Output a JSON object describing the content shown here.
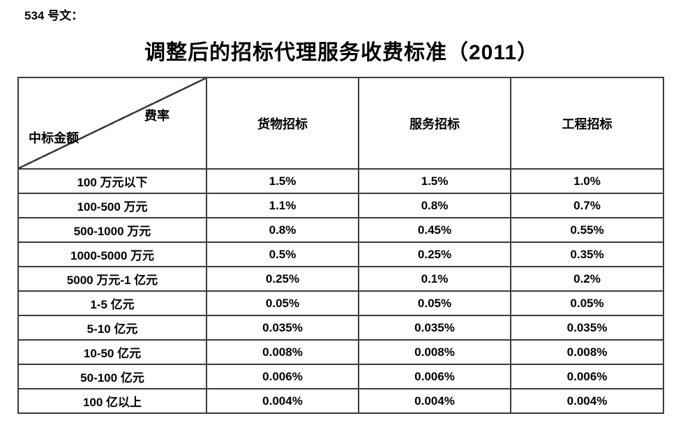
{
  "page": {
    "doc_ref": "534 号文：",
    "title": "调整后的招标代理服务收费标准（2011）"
  },
  "table": {
    "corner": {
      "top_right_label": "费率",
      "bottom_left_label": "中标金额"
    },
    "columns": [
      "货物招标",
      "服务招标",
      "工程招标"
    ],
    "rows": [
      {
        "label": "100 万元以下",
        "values": [
          "1.5%",
          "1.5%",
          "1.0%"
        ]
      },
      {
        "label": "100-500 万元",
        "values": [
          "1.1%",
          "0.8%",
          "0.7%"
        ]
      },
      {
        "label": "500-1000 万元",
        "values": [
          "0.8%",
          "0.45%",
          "0.55%"
        ]
      },
      {
        "label": "1000-5000 万元",
        "values": [
          "0.5%",
          "0.25%",
          "0.35%"
        ]
      },
      {
        "label": "5000 万元-1 亿元",
        "values": [
          "0.25%",
          "0.1%",
          "0.2%"
        ]
      },
      {
        "label": "1-5 亿元",
        "values": [
          "0.05%",
          "0.05%",
          "0.05%"
        ]
      },
      {
        "label": "5-10 亿元",
        "values": [
          "0.035%",
          "0.035%",
          "0.035%"
        ]
      },
      {
        "label": "10-50 亿元",
        "values": [
          "0.008%",
          "0.008%",
          "0.008%"
        ]
      },
      {
        "label": "50-100 亿元",
        "values": [
          "0.006%",
          "0.006%",
          "0.006%"
        ]
      },
      {
        "label": "100 亿以上",
        "values": [
          "0.004%",
          "0.004%",
          "0.004%"
        ]
      }
    ],
    "colors": {
      "border": "#3b3b3b",
      "text": "#000000",
      "background": "#ffffff"
    }
  }
}
